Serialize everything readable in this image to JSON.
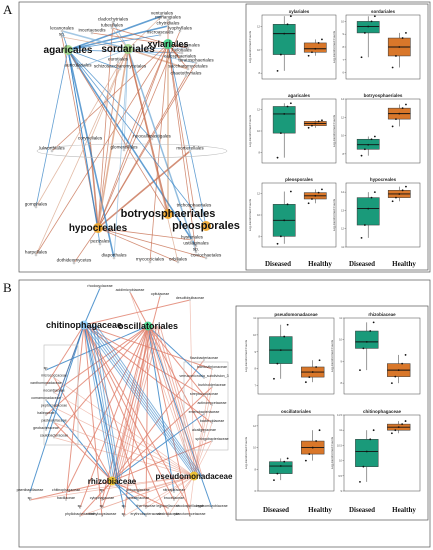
{
  "panel_a": {
    "letter": "A",
    "hubs": [
      "agaricales",
      "sordariales",
      "xylariales",
      "botryosphaeriales",
      "hypocreales",
      "pleosporales"
    ],
    "labels": [
      "venturiales",
      "myriangiales",
      "cladochytriales",
      "chytridiales",
      "tubeufiales",
      "lyophyllales",
      "lecanorales",
      "incertaesedis",
      "sp.",
      "microascales",
      "onygenales",
      "eurotiales",
      "helotiales",
      "calosphaeriales",
      "teratosphaeriales",
      "schizosaccharomycetales",
      "saccharomycetales",
      "chaetothyriales",
      "auriculariales",
      "lulworthiales",
      "coryneliales",
      "neocallimastigales",
      "glomerellales",
      "mortierellales",
      "gomphales",
      "trichosphaeriales",
      "hysteriales",
      "pezizales",
      "harpellales",
      "dothideomycetes",
      "diaporthales",
      "mycocciciales",
      "orbiliales",
      "ustilaginales",
      "sp.",
      "coniochaetales"
    ],
    "plots": [
      {
        "title": "xylariales"
      },
      {
        "title": "sordariales"
      },
      {
        "title": "agaricales"
      },
      {
        "title": "botryosphaeriales"
      },
      {
        "title": "pleosporales"
      },
      {
        "title": "hypocreales"
      }
    ],
    "ylabel": "Log-transformed Counts",
    "xcats": [
      "Diseased",
      "Healthy"
    ]
  },
  "panel_b": {
    "letter": "B",
    "hubs": [
      "chitinophagaceae",
      "oscillatoriales",
      "rhizobiaceae",
      "pseudomonadaceae"
    ],
    "labels": [
      "rhodocyclaceae",
      "acidimicrobiaceae",
      "opitutaceae",
      "desulfobulbaceae",
      "sp.",
      "micrococcaceae",
      "xanthomonadaceae",
      "nocardiaceae",
      "comamonadaceae",
      "peptococcaceae",
      "halieaceae",
      "pasteurellaceae",
      "geobacteraceae",
      "caulobacteraceae",
      "flavobacteriaceae",
      "bdellovibrionaceae",
      "verrucomicrobia_subdivision_3",
      "burkholderiaceae",
      "streptococcaceae",
      "actinomycetaceae",
      "enterobacteriaceae",
      "bacteroidaceae",
      "alcaligenaceae",
      "sphingobacteriaceae",
      "paenibacillaceae",
      "chitinophagaceae",
      "sp.",
      "polyangiaceae",
      "nitrospiraceae",
      "sp.",
      "bacillaceae",
      "cytophagaceae",
      "neisseriaceae",
      "brucellaceae",
      "sp.",
      "sp.",
      "sp.",
      "thermaceae",
      "legionellaceae",
      "rhodospirillaceae",
      "hyphomicrobiaceae",
      "phyllobacteriaceae",
      "methylocystaceae",
      "sp.",
      "erythrobacteraceae",
      "clostridiaceae",
      "planctomycetaceae"
    ],
    "plots": [
      {
        "title": "pseudomonadaceae"
      },
      {
        "title": "rhizobiaceae"
      },
      {
        "title": "oscillatoriales"
      },
      {
        "title": "chitinophagaceae"
      }
    ],
    "ylabel": "Log-transformed Counts",
    "xcats": [
      "Diseased",
      "Healthy"
    ]
  },
  "chart_data": [
    {
      "type": "box",
      "title": "xylariales",
      "categories": [
        "Diseased",
        "Healthy"
      ],
      "ylim": [
        7.5,
        13
      ],
      "boxes": [
        {
          "min": 8.2,
          "q1": 9.6,
          "median": 11.4,
          "q3": 12.2,
          "max": 12.9
        },
        {
          "min": 9.5,
          "q1": 9.8,
          "median": 10.1,
          "q3": 10.6,
          "max": 10.9
        }
      ],
      "colors": [
        "#1a9a7a",
        "#d9772a"
      ]
    },
    {
      "type": "box",
      "title": "sordariales",
      "categories": [
        "Diseased",
        "Healthy"
      ],
      "ylim": [
        5.5,
        10.5
      ],
      "boxes": [
        {
          "min": 7.2,
          "q1": 9.1,
          "median": 9.6,
          "q3": 10.0,
          "max": 10.4
        },
        {
          "min": 6.4,
          "q1": 7.3,
          "median": 8.0,
          "q3": 8.7,
          "max": 9.1
        }
      ],
      "colors": [
        "#1a9a7a",
        "#d9772a"
      ]
    },
    {
      "type": "box",
      "title": "agaricales",
      "categories": [
        "Diseased",
        "Healthy"
      ],
      "ylim": [
        7,
        13
      ],
      "boxes": [
        {
          "min": 7.5,
          "q1": 9.8,
          "median": 11.6,
          "q3": 12.3,
          "max": 12.6
        },
        {
          "min": 10.3,
          "q1": 10.5,
          "median": 10.7,
          "q3": 10.9,
          "max": 11.0
        }
      ],
      "colors": [
        "#1a9a7a",
        "#d9772a"
      ]
    },
    {
      "type": "box",
      "title": "botryosphaeriales",
      "categories": [
        "Diseased",
        "Healthy"
      ],
      "ylim": [
        7,
        14
      ],
      "boxes": [
        {
          "min": 7.8,
          "q1": 8.5,
          "median": 9.0,
          "q3": 9.6,
          "max": 9.9
        },
        {
          "min": 11.0,
          "q1": 11.8,
          "median": 12.4,
          "q3": 13.0,
          "max": 13.4
        }
      ],
      "colors": [
        "#1a9a7a",
        "#d9772a"
      ]
    },
    {
      "type": "box",
      "title": "pleosporales",
      "categories": [
        "Diseased",
        "Healthy"
      ],
      "ylim": [
        7,
        13
      ],
      "boxes": [
        {
          "min": 7.3,
          "q1": 8.0,
          "median": 9.5,
          "q3": 11.0,
          "max": 12.2
        },
        {
          "min": 11.1,
          "q1": 11.5,
          "median": 11.8,
          "q3": 12.1,
          "max": 12.4
        }
      ],
      "colors": [
        "#1a9a7a",
        "#d9772a"
      ]
    },
    {
      "type": "box",
      "title": "hypocreales",
      "categories": [
        "Diseased",
        "Healthy"
      ],
      "ylim": [
        11,
        14.5
      ],
      "boxes": [
        {
          "min": 11.5,
          "q1": 12.2,
          "median": 13.1,
          "q3": 13.7,
          "max": 14.0
        },
        {
          "min": 13.5,
          "q1": 13.7,
          "median": 13.9,
          "q3": 14.1,
          "max": 14.3
        }
      ],
      "colors": [
        "#1a9a7a",
        "#d9772a"
      ]
    },
    {
      "type": "box",
      "title": "pseudomonadaceae",
      "categories": [
        "Diseased",
        "Healthy"
      ],
      "ylim": [
        6.5,
        11
      ],
      "boxes": [
        {
          "min": 7.4,
          "q1": 8.3,
          "median": 9.1,
          "q3": 9.9,
          "max": 10.6
        },
        {
          "min": 7.2,
          "q1": 7.5,
          "median": 7.8,
          "q3": 8.1,
          "max": 8.5
        }
      ],
      "colors": [
        "#1a9a7a",
        "#d9772a"
      ]
    },
    {
      "type": "box",
      "title": "rhizobiaceae",
      "categories": [
        "Diseased",
        "Healthy"
      ],
      "ylim": [
        7.5,
        11
      ],
      "boxes": [
        {
          "min": 8.6,
          "q1": 9.6,
          "median": 9.9,
          "q3": 10.4,
          "max": 10.8
        },
        {
          "min": 8.0,
          "q1": 8.3,
          "median": 8.6,
          "q3": 8.9,
          "max": 9.3
        }
      ],
      "colors": [
        "#1a9a7a",
        "#d9772a"
      ]
    },
    {
      "type": "box",
      "title": "oscillatoriales",
      "categories": [
        "Diseased",
        "Healthy"
      ],
      "ylim": [
        6,
        13
      ],
      "boxes": [
        {
          "min": 7.0,
          "q1": 7.6,
          "median": 8.3,
          "q3": 8.7,
          "max": 9.0
        },
        {
          "min": 8.8,
          "q1": 9.4,
          "median": 10.0,
          "q3": 10.6,
          "max": 11.6
        }
      ],
      "colors": [
        "#1a9a7a",
        "#d9772a"
      ]
    },
    {
      "type": "box",
      "title": "chitinophagaceae",
      "categories": [
        "Diseased",
        "Healthy"
      ],
      "ylim": [
        9,
        11.5
      ],
      "boxes": [
        {
          "min": 9.3,
          "q1": 9.8,
          "median": 10.3,
          "q3": 10.7,
          "max": 11.0
        },
        {
          "min": 10.9,
          "q1": 11.0,
          "median": 11.1,
          "q3": 11.2,
          "max": 11.3
        }
      ],
      "colors": [
        "#1a9a7a",
        "#d9772a"
      ]
    }
  ]
}
